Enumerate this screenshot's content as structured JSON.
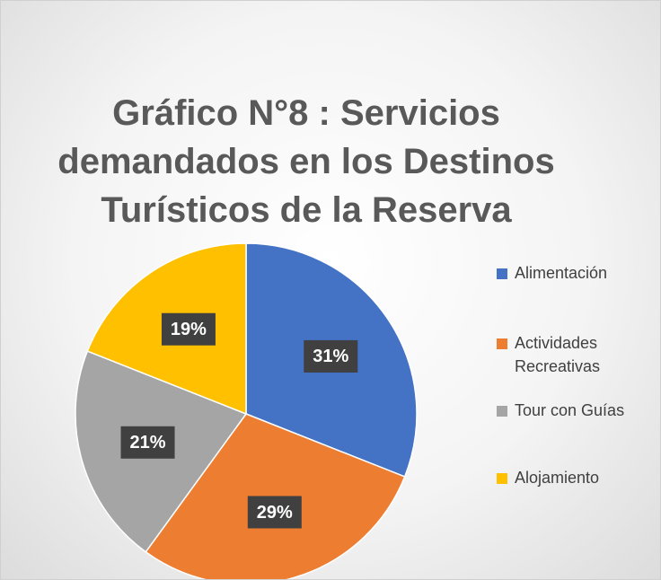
{
  "chart_data": {
    "type": "pie",
    "title": "Gráfico N°8 : Servicios demandados en los Destinos Turísticos de la Reserva",
    "categories": [
      "Alimentación",
      "Actividades Recreativas",
      "Tour con Guías",
      "Alojamiento"
    ],
    "values": [
      31,
      29,
      21,
      19
    ],
    "value_labels": [
      "31%",
      "29%",
      "21%",
      "19%"
    ],
    "colors": [
      "#4472c4",
      "#ed7d31",
      "#a5a5a5",
      "#ffc000"
    ],
    "legend": "right"
  }
}
